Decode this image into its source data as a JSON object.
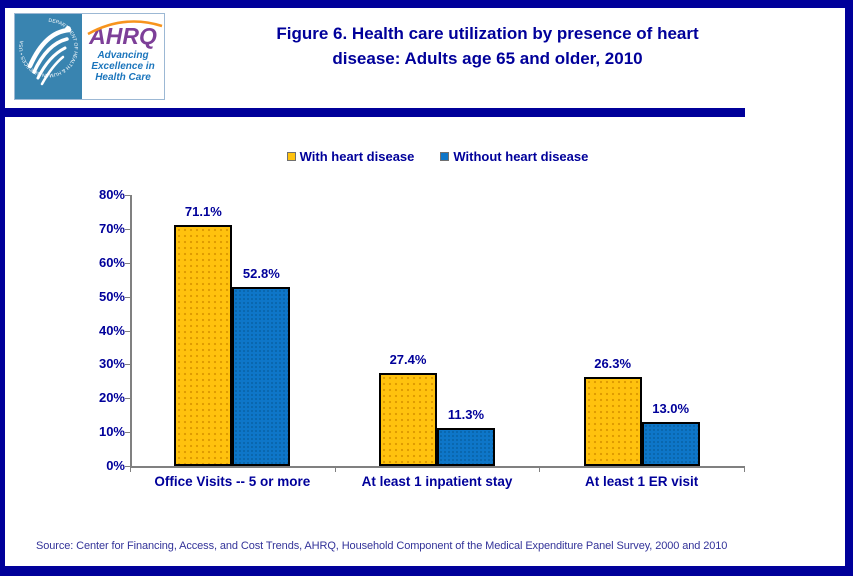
{
  "header": {
    "title_line1": "Figure 6. Health care utilization by presence of heart",
    "title_line2": "disease: Adults age 65 and older, 2010",
    "logo": {
      "acronym": "AHRQ",
      "tagline_lines": [
        "Advancing",
        "Excellence in",
        "Health Care"
      ],
      "seal_text": "DEPARTMENT OF HEALTH & HUMAN SERVICES • USA"
    }
  },
  "chart_data": {
    "type": "bar",
    "title": "Figure 6. Health care utilization by presence of heart disease: Adults age 65 and older, 2010",
    "categories": [
      "Office Visits -- 5 or more",
      "At least 1 inpatient stay",
      "At least 1 ER visit"
    ],
    "series": [
      {
        "name": "With heart disease",
        "color": "#FFC20E",
        "pattern": "dots",
        "pattern_color": "#DE9A00",
        "values": [
          71.1,
          27.4,
          26.3
        ],
        "labels": [
          "71.1%",
          "27.4%",
          "26.3%"
        ]
      },
      {
        "name": "Without heart disease",
        "color": "#0E76C8",
        "pattern": "dots",
        "pattern_color": "#0A66AD",
        "values": [
          52.8,
          11.3,
          13.0
        ],
        "labels": [
          "52.8%",
          "11.3%",
          "13.0%"
        ]
      }
    ],
    "xlabel": "",
    "ylabel": "",
    "ylim": [
      0,
      80
    ],
    "ytick_step": 10,
    "ytick_suffix": "%",
    "legend_position": "top",
    "grid": false
  },
  "footer": {
    "source": "Source: Center for Financing, Access, and Cost Trends, AHRQ, Household Component of the Medical Expenditure Panel Survey,  2000 and 2010"
  },
  "colors": {
    "frame": "#00009A",
    "title_text": "#00009A",
    "label_text": "#00009A",
    "axis": "#808080",
    "bar_border": "#000000",
    "source_text": "#333399",
    "seal_background": "#3984B0",
    "ahrq_purple": "#7D3F98",
    "ahrq_orange": "#F7941D",
    "tagline_blue": "#1B75BC"
  }
}
